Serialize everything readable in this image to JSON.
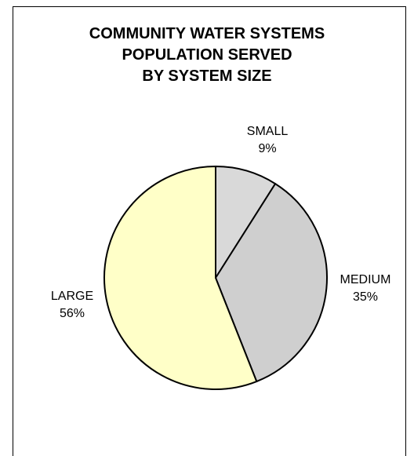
{
  "chart_data": {
    "type": "pie",
    "title_lines": [
      "COMMUNITY WATER SYSTEMS",
      "POPULATION SERVED",
      "BY SYSTEM SIZE"
    ],
    "slices": [
      {
        "name": "SMALL",
        "value": 9,
        "label": "9%",
        "color": "#d9d9d9"
      },
      {
        "name": "MEDIUM",
        "value": 35,
        "label": "35%",
        "color": "#cfcfcf"
      },
      {
        "name": "LARGE",
        "value": 56,
        "label": "56%",
        "color": "#ffffc8"
      }
    ],
    "start": "12 o'clock",
    "direction": "clockwise"
  }
}
